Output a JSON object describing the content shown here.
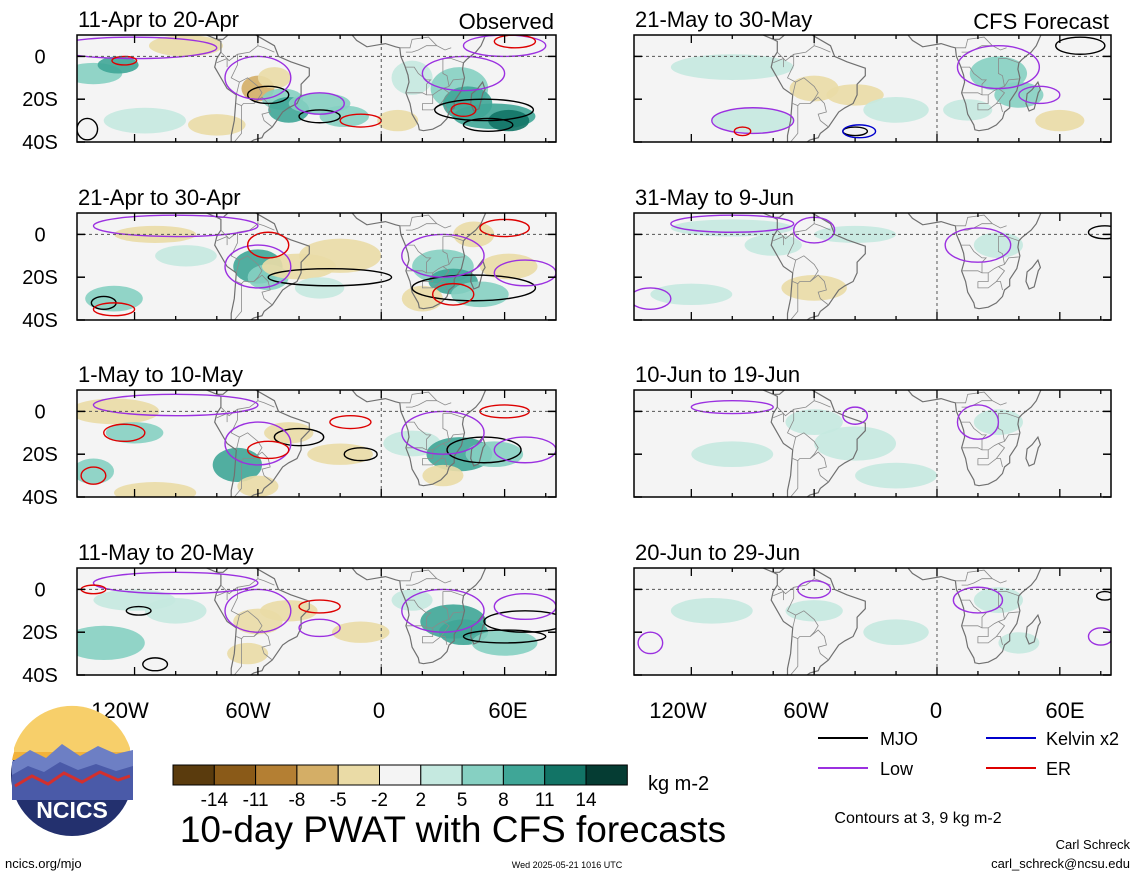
{
  "panels": [
    {
      "title": "11-Apr to 20-Apr",
      "tag": "Observed",
      "col": 0,
      "row": 0
    },
    {
      "title": "21-Apr to 30-Apr",
      "tag": "",
      "col": 0,
      "row": 1
    },
    {
      "title": "1-May to 10-May",
      "tag": "",
      "col": 0,
      "row": 2
    },
    {
      "title": "11-May to 20-May",
      "tag": "",
      "col": 0,
      "row": 3
    },
    {
      "title": "21-May to 30-May",
      "tag": "CFS Forecast",
      "col": 1,
      "row": 0
    },
    {
      "title": "31-May to 9-Jun",
      "tag": "",
      "col": 1,
      "row": 1
    },
    {
      "title": "10-Jun to 19-Jun",
      "tag": "",
      "col": 1,
      "row": 2
    },
    {
      "title": "20-Jun to 29-Jun",
      "tag": "",
      "col": 1,
      "row": 3
    }
  ],
  "axes": {
    "y_ticks": [
      "0",
      "20S",
      "40S"
    ],
    "x_ticks": [
      "120W",
      "60W",
      "0",
      "60E"
    ]
  },
  "colorbar": {
    "labels": [
      "-14",
      "-11",
      "-8",
      "-5",
      "-2",
      "2",
      "5",
      "8",
      "11",
      "14"
    ],
    "colors": [
      "#5a3b0d",
      "#8a5a18",
      "#b47f33",
      "#d4ae66",
      "#eadba6",
      "#f4f4f4",
      "#c5e9e0",
      "#86d0c2",
      "#3fa697",
      "#127466",
      "#053c33"
    ],
    "units": "kg m-2"
  },
  "legend": [
    {
      "label": "MJO",
      "color": "#000000"
    },
    {
      "label": "Kelvin x2",
      "color": "#0000cc"
    },
    {
      "label": "Low",
      "color": "#9b30e0"
    },
    {
      "label": "ER",
      "color": "#dd0000"
    }
  ],
  "contours_note": "Contours at 3, 9 kg m-2",
  "main_title": "10-day PWAT with CFS forecasts",
  "logo_text": "NCICS",
  "footer": {
    "left": "ncics.org/mjo",
    "center": "Wed 2025-05-21 1016 UTC",
    "author": "Carl Schreck",
    "email": "carl_schreck@ncsu.edu"
  },
  "chart_data": {
    "type": "heatmap",
    "variable": "10-day PWAT with CFS forecasts",
    "units": "kg m-2",
    "color_levels": [
      -14,
      -11,
      -8,
      -5,
      -2,
      2,
      5,
      8,
      11,
      14
    ],
    "x_ticks": [
      "120W",
      "60W",
      "0",
      "60E"
    ],
    "y_ticks": [
      "0",
      "20S",
      "40S"
    ],
    "contour_levels": [
      3,
      9
    ],
    "contour_series": [
      "MJO",
      "Kelvin x2",
      "Low",
      "ER"
    ],
    "panels_observed": [
      "11-Apr to 20-Apr",
      "21-Apr to 30-Apr",
      "1-May to 10-May",
      "11-May to 20-May"
    ],
    "panels_forecast": [
      "21-May to 30-May",
      "31-May to 9-Jun",
      "10-Jun to 19-Jun",
      "20-Jun to 29-Jun"
    ]
  }
}
